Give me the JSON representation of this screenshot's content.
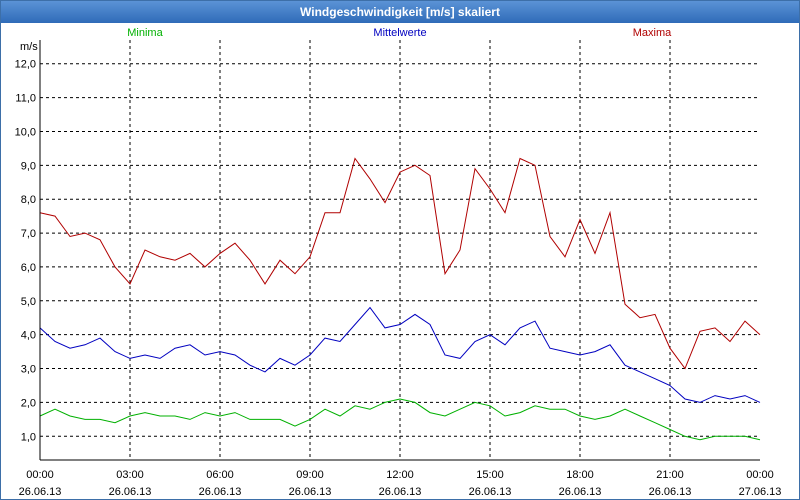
{
  "window": {
    "title": "Windgeschwindigkeit [m/s] skaliert"
  },
  "chart_data": {
    "type": "line",
    "title": "Windgeschwindigkeit [m/s] skaliert",
    "ylabel": "m/s",
    "xlabel": "",
    "ylim": [
      0.3,
      12.7
    ],
    "y_ticks": [
      "1,0",
      "2,0",
      "3,0",
      "4,0",
      "5,0",
      "6,0",
      "7,0",
      "8,0",
      "9,0",
      "10,0",
      "11,0",
      "12,0"
    ],
    "x_ticks": [
      {
        "time": "00:00",
        "date": "26.06.13"
      },
      {
        "time": "03:00",
        "date": "26.06.13"
      },
      {
        "time": "06:00",
        "date": "26.06.13"
      },
      {
        "time": "09:00",
        "date": "26.06.13"
      },
      {
        "time": "12:00",
        "date": "26.06.13"
      },
      {
        "time": "15:00",
        "date": "26.06.13"
      },
      {
        "time": "18:00",
        "date": "26.06.13"
      },
      {
        "time": "21:00",
        "date": "26.06.13"
      },
      {
        "time": "00:00",
        "date": "27.06.13"
      }
    ],
    "x_hours": [
      0,
      0.5,
      1,
      1.5,
      2,
      2.5,
      3,
      3.5,
      4,
      4.5,
      5,
      5.5,
      6,
      6.5,
      7,
      7.5,
      8,
      8.5,
      9,
      9.5,
      10,
      10.5,
      11,
      11.5,
      12,
      12.5,
      13,
      13.5,
      14,
      14.5,
      15,
      15.5,
      16,
      16.5,
      17,
      17.5,
      18,
      18.5,
      19,
      19.5,
      20,
      20.5,
      21,
      21.5,
      22,
      22.5,
      23,
      23.5,
      24
    ],
    "grid": true,
    "legend_position": "top",
    "series": [
      {
        "name": "Minima",
        "color": "#00b000",
        "values": [
          1.6,
          1.8,
          1.6,
          1.5,
          1.5,
          1.4,
          1.6,
          1.7,
          1.6,
          1.6,
          1.5,
          1.7,
          1.6,
          1.7,
          1.5,
          1.5,
          1.5,
          1.3,
          1.5,
          1.8,
          1.6,
          1.9,
          1.8,
          2.0,
          2.1,
          2.0,
          1.7,
          1.6,
          1.8,
          2.0,
          1.9,
          1.6,
          1.7,
          1.9,
          1.8,
          1.8,
          1.6,
          1.5,
          1.6,
          1.8,
          1.6,
          1.4,
          1.2,
          1.0,
          0.9,
          1.0,
          1.0,
          1.0,
          0.9
        ]
      },
      {
        "name": "Mittelwerte",
        "color": "#0000c0",
        "values": [
          4.2,
          3.8,
          3.6,
          3.7,
          3.9,
          3.5,
          3.3,
          3.4,
          3.3,
          3.6,
          3.7,
          3.4,
          3.5,
          3.4,
          3.1,
          2.9,
          3.3,
          3.1,
          3.4,
          3.9,
          3.8,
          4.3,
          4.8,
          4.2,
          4.3,
          4.6,
          4.3,
          3.4,
          3.3,
          3.8,
          4.0,
          3.7,
          4.2,
          4.4,
          3.6,
          3.5,
          3.4,
          3.5,
          3.7,
          3.1,
          2.9,
          2.7,
          2.5,
          2.1,
          2.0,
          2.2,
          2.1,
          2.2,
          2.0
        ]
      },
      {
        "name": "Maxima",
        "color": "#b00000",
        "values": [
          7.6,
          7.5,
          6.9,
          7.0,
          6.8,
          6.0,
          5.5,
          6.5,
          6.3,
          6.2,
          6.4,
          6.0,
          6.4,
          6.7,
          6.2,
          5.5,
          6.2,
          5.8,
          6.3,
          7.6,
          7.6,
          9.2,
          8.6,
          7.9,
          8.8,
          9.0,
          8.7,
          5.8,
          6.5,
          8.9,
          8.3,
          7.6,
          9.2,
          9.0,
          6.9,
          6.3,
          7.4,
          6.4,
          7.6,
          4.9,
          4.5,
          4.6,
          3.6,
          3.0,
          4.1,
          4.2,
          3.8,
          4.4,
          4.0
        ]
      }
    ]
  }
}
